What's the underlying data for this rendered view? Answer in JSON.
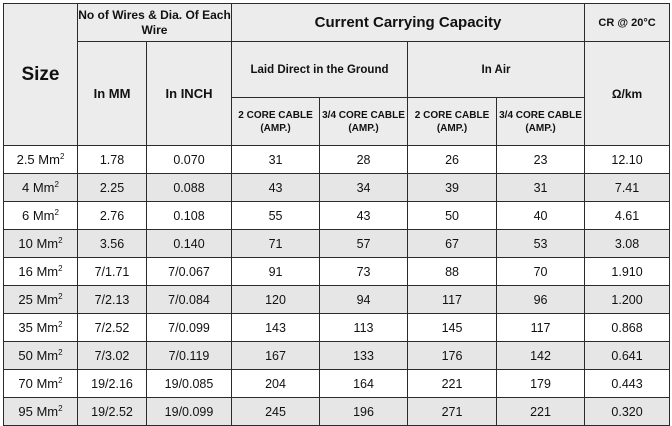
{
  "header": {
    "size": "Size",
    "wires_group": "No of Wires & Dia. Of Each Wire",
    "in_mm": "In MM",
    "in_inch": "In INCH",
    "ccc": "Current Carrying Capacity",
    "ground": "Laid Direct in the Ground",
    "air": "In Air",
    "sub_2core": "2 CORE CABLE (AMP.)",
    "sub_34core": "3/4 CORE CABLE (AMP.)",
    "cr": "CR @ 20°C",
    "cr_unit": "Ω/km"
  },
  "rows": [
    {
      "size": "2.5 Mm",
      "sup": "2",
      "mm": "1.78",
      "inch": "0.070",
      "g2": "31",
      "g34": "28",
      "a2": "26",
      "a34": "23",
      "cr": "12.10"
    },
    {
      "size": "4 Mm",
      "sup": "2",
      "mm": "2.25",
      "inch": "0.088",
      "g2": "43",
      "g34": "34",
      "a2": "39",
      "a34": "31",
      "cr": "7.41"
    },
    {
      "size": "6 Mm",
      "sup": "2",
      "mm": "2.76",
      "inch": "0.108",
      "g2": "55",
      "g34": "43",
      "a2": "50",
      "a34": "40",
      "cr": "4.61"
    },
    {
      "size": "10 Mm",
      "sup": "2",
      "mm": "3.56",
      "inch": "0.140",
      "g2": "71",
      "g34": "57",
      "a2": "67",
      "a34": "53",
      "cr": "3.08"
    },
    {
      "size": "16 Mm",
      "sup": "2",
      "mm": "7/1.71",
      "inch": "7/0.067",
      "g2": "91",
      "g34": "73",
      "a2": "88",
      "a34": "70",
      "cr": "1.910"
    },
    {
      "size": "25 Mm",
      "sup": "2",
      "mm": "7/2.13",
      "inch": "7/0.084",
      "g2": "120",
      "g34": "94",
      "a2": "117",
      "a34": "96",
      "cr": "1.200"
    },
    {
      "size": "35 Mm",
      "sup": "2",
      "mm": "7/2.52",
      "inch": "7/0.099",
      "g2": "143",
      "g34": "113",
      "a2": "145",
      "a34": "117",
      "cr": "0.868"
    },
    {
      "size": "50 Mm",
      "sup": "2",
      "mm": "7/3.02",
      "inch": "7/0.119",
      "g2": "167",
      "g34": "133",
      "a2": "176",
      "a34": "142",
      "cr": "0.641"
    },
    {
      "size": "70 Mm",
      "sup": "2",
      "mm": "19/2.16",
      "inch": "19/0.085",
      "g2": "204",
      "g34": "164",
      "a2": "221",
      "a34": "179",
      "cr": "0.443"
    },
    {
      "size": "95 Mm",
      "sup": "2",
      "mm": "19/2.52",
      "inch": "19/0.099",
      "g2": "245",
      "g34": "196",
      "a2": "271",
      "a34": "221",
      "cr": "0.320"
    }
  ]
}
